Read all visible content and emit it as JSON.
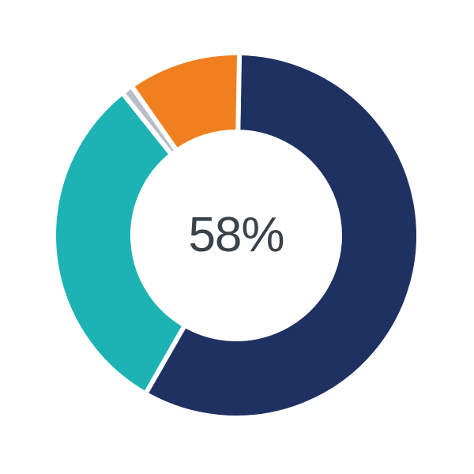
{
  "page": {
    "background": "#ffffff"
  },
  "chart_data": {
    "type": "pie",
    "subtype": "donut",
    "center_label": "58%",
    "center_label_color": "#3a424a",
    "direction": "clockwise",
    "start_angle_deg": 1,
    "inner_radius_ratio": 0.567,
    "hole_color": "#ffffff",
    "gap_stroke_color": "#ffffff",
    "gap_stroke_width": 6,
    "segments": [
      {
        "name": "navy",
        "value": 58,
        "color": "#1e3161"
      },
      {
        "name": "teal",
        "value": 31,
        "color": "#1db3b5"
      },
      {
        "name": "gray-sliver",
        "value": 1,
        "color": "#b7bec7"
      },
      {
        "name": "orange",
        "value": 10,
        "color": "#f0801f"
      }
    ],
    "legend": "none",
    "title": ""
  }
}
